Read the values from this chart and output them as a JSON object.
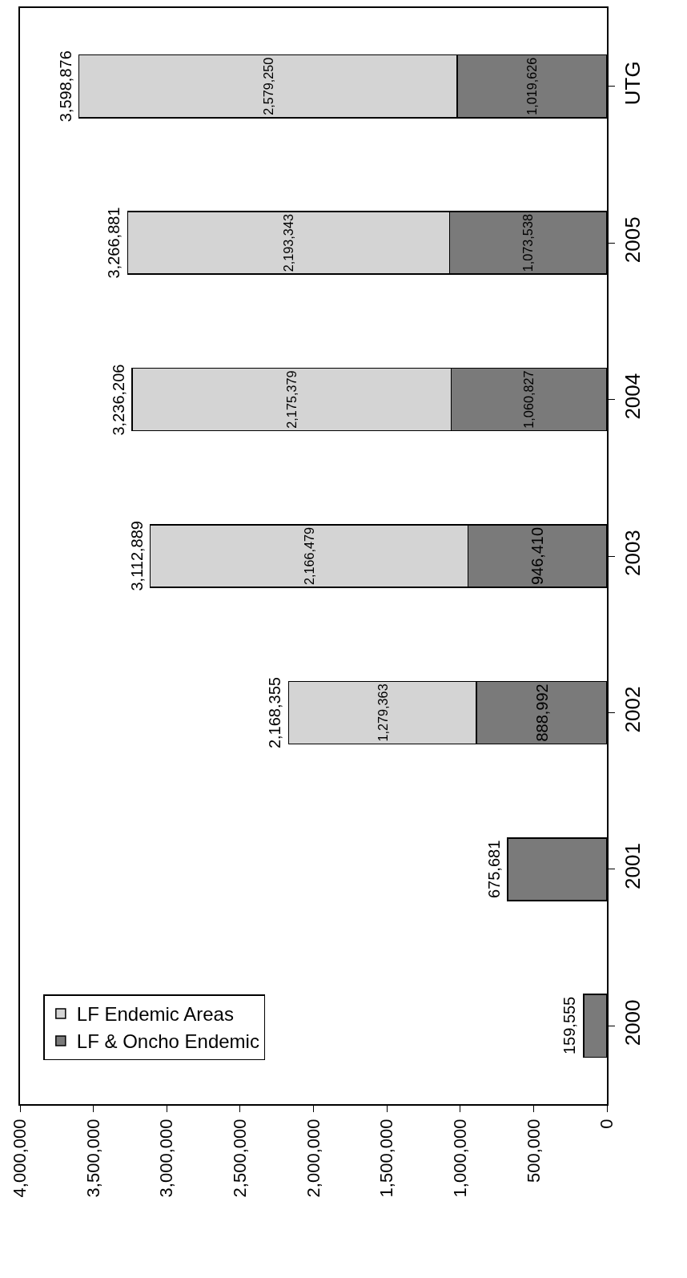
{
  "chart_data": {
    "type": "bar",
    "orientation": "horizontal",
    "stacked": true,
    "categories": [
      "UTG",
      "2005",
      "2004",
      "2003",
      "2002",
      "2001",
      "2000"
    ],
    "series": [
      {
        "name": "LF & Oncho Endemic",
        "color": "#7a7a7a",
        "values": [
          1019626,
          1073538,
          1060827,
          946410,
          888992,
          675681,
          159555
        ],
        "value_labels": [
          "1,019,626",
          "1,073,538",
          "1,060,827",
          "946,410",
          "888,992",
          null,
          null
        ]
      },
      {
        "name": "LF Endemic Areas",
        "color": "#d4d4d4",
        "values": [
          2579250,
          2193343,
          2175379,
          2166479,
          1279363,
          null,
          null
        ],
        "value_labels": [
          "2,579,250",
          "2,193,343",
          "2,175,379",
          "2,166,479",
          "1,279,363",
          null,
          null
        ]
      }
    ],
    "totals": [
      "3,598,876",
      "3,266,881",
      "3,236,206",
      "3,112,889",
      "2,168,355",
      "675,681",
      "159,555"
    ],
    "xlim": [
      4000000,
      0
    ],
    "xticks": [
      {
        "value": 4000000,
        "label": "4,000,000"
      },
      {
        "value": 3500000,
        "label": "3,500,000"
      },
      {
        "value": 3000000,
        "label": "3,000,000"
      },
      {
        "value": 2500000,
        "label": "2,500,000"
      },
      {
        "value": 2000000,
        "label": "2,000,000"
      },
      {
        "value": 1500000,
        "label": "1,500,000"
      },
      {
        "value": 1000000,
        "label": "1,000,000"
      },
      {
        "value": 500000,
        "label": "500,000"
      },
      0
    ],
    "legend": "bottom left"
  }
}
